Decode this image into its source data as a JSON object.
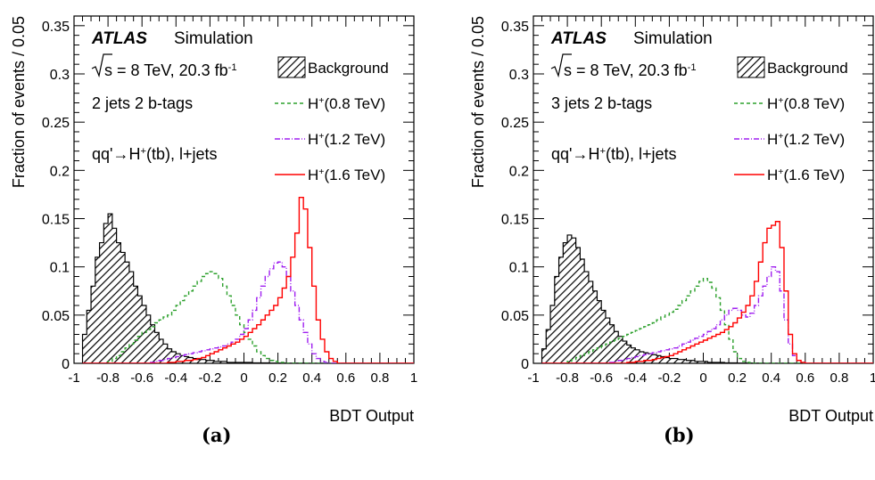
{
  "chart_data": [
    {
      "type": "line",
      "panel_label": "(a)",
      "xlabel": "BDT Output",
      "ylabel": "Fraction of events / 0.05",
      "xlim": [
        -1,
        1
      ],
      "ylim": [
        0,
        0.36
      ],
      "x_ticks": [
        "-1",
        "-0.8",
        "-0.6",
        "-0.4",
        "-0.2",
        "0",
        "0.2",
        "0.4",
        "0.6",
        "0.8",
        "1"
      ],
      "y_ticks": [
        "0",
        "0.05",
        "0.1",
        "0.15",
        "0.2",
        "0.25",
        "0.3",
        "0.35"
      ],
      "annotations": {
        "experiment": "ATLAS",
        "label": "Simulation",
        "energy_prefix": "s = 8 TeV, 20.3 fb",
        "energy_sup": "-1",
        "category": "2 jets 2 b-tags",
        "process_pre": "qq'",
        "process_post": "H",
        "process_sup": "+",
        "process_tail": "(tb), l+jets"
      },
      "legend": [
        "Background",
        "H+(0.8 TeV)",
        "H+(1.2 TeV)",
        "H+(1.6 TeV)"
      ],
      "legend_display": [
        {
          "pre": "",
          "sup": "",
          "post": "Background"
        },
        {
          "pre": "H",
          "sup": "+",
          "post": "(0.8 TeV)"
        },
        {
          "pre": "H",
          "sup": "+",
          "post": "(1.2 TeV)"
        },
        {
          "pre": "H",
          "sup": "+",
          "post": "(1.6 TeV)"
        }
      ],
      "bin_edges_start": -0.95,
      "bin_width": 0.025,
      "series": [
        {
          "name": "Background",
          "style": "hatched",
          "color": "#000000",
          "values": [
            0.03,
            0.055,
            0.08,
            0.11,
            0.125,
            0.145,
            0.155,
            0.14,
            0.125,
            0.115,
            0.105,
            0.095,
            0.08,
            0.07,
            0.06,
            0.05,
            0.04,
            0.032,
            0.025,
            0.02,
            0.015,
            0.012,
            0.01,
            0.008,
            0.007,
            0.006,
            0.005,
            0.004,
            0.004,
            0.003,
            0.003,
            0.002,
            0.002,
            0.002,
            0.001,
            0.001,
            0.001,
            0.001,
            0.001,
            0.001,
            0.0005,
            0.0005,
            0.0005,
            0.0005,
            0.0003,
            0.0003,
            0.0002,
            0.0002,
            0.0001,
            0.0001,
            0.0001,
            0.0001,
            0.0001,
            0,
            0,
            0,
            0,
            0,
            0,
            0,
            0,
            0,
            0,
            0,
            0,
            0,
            0,
            0,
            0,
            0,
            0,
            0,
            0,
            0,
            0,
            0,
            0,
            0
          ]
        },
        {
          "name": "H+(0.8 TeV)",
          "style": "dashed",
          "color": "#2ca02c",
          "values": [
            0,
            0,
            0,
            0,
            0,
            0,
            0.002,
            0.005,
            0.008,
            0.012,
            0.016,
            0.02,
            0.024,
            0.028,
            0.032,
            0.035,
            0.038,
            0.042,
            0.045,
            0.048,
            0.05,
            0.055,
            0.06,
            0.065,
            0.07,
            0.075,
            0.08,
            0.085,
            0.09,
            0.093,
            0.095,
            0.093,
            0.088,
            0.08,
            0.07,
            0.06,
            0.05,
            0.04,
            0.032,
            0.025,
            0.018,
            0.012,
            0.008,
            0.005,
            0.003,
            0.002,
            0.001,
            0.001,
            0,
            0,
            0,
            0,
            0,
            0,
            0,
            0,
            0,
            0,
            0,
            0,
            0,
            0,
            0,
            0,
            0,
            0,
            0,
            0,
            0,
            0,
            0,
            0,
            0,
            0,
            0,
            0,
            0,
            0
          ]
        },
        {
          "name": "H+(1.2 TeV)",
          "style": "dashdot",
          "color": "#a020f0",
          "values": [
            0,
            0,
            0,
            0,
            0,
            0,
            0,
            0,
            0,
            0,
            0,
            0,
            0,
            0,
            0,
            0,
            0.001,
            0.002,
            0.003,
            0.004,
            0.005,
            0.006,
            0.007,
            0.008,
            0.009,
            0.01,
            0.011,
            0.012,
            0.013,
            0.014,
            0.015,
            0.016,
            0.017,
            0.018,
            0.02,
            0.022,
            0.025,
            0.03,
            0.036,
            0.045,
            0.055,
            0.068,
            0.08,
            0.09,
            0.098,
            0.104,
            0.105,
            0.1,
            0.09,
            0.075,
            0.06,
            0.045,
            0.032,
            0.02,
            0.01,
            0.005,
            0.002,
            0.001,
            0,
            0,
            0,
            0,
            0,
            0,
            0,
            0,
            0,
            0,
            0,
            0,
            0,
            0,
            0,
            0,
            0,
            0,
            0,
            0
          ]
        },
        {
          "name": "H+(1.6 TeV)",
          "style": "solid",
          "color": "#ff0000",
          "values": [
            0,
            0,
            0,
            0,
            0,
            0,
            0,
            0,
            0,
            0,
            0,
            0,
            0,
            0,
            0,
            0,
            0,
            0,
            0,
            0,
            0.001,
            0.001,
            0.002,
            0.002,
            0.003,
            0.003,
            0.004,
            0.005,
            0.006,
            0.008,
            0.01,
            0.012,
            0.014,
            0.016,
            0.018,
            0.02,
            0.022,
            0.025,
            0.028,
            0.032,
            0.036,
            0.04,
            0.045,
            0.05,
            0.055,
            0.06,
            0.068,
            0.078,
            0.09,
            0.11,
            0.135,
            0.172,
            0.16,
            0.12,
            0.08,
            0.045,
            0.025,
            0.012,
            0.005,
            0.002,
            0,
            0,
            0,
            0,
            0,
            0,
            0,
            0,
            0,
            0,
            0,
            0,
            0,
            0,
            0,
            0,
            0,
            0
          ]
        }
      ]
    },
    {
      "type": "line",
      "panel_label": "(b)",
      "xlabel": "BDT Output",
      "ylabel": "Fraction of events / 0.05",
      "xlim": [
        -1,
        1
      ],
      "ylim": [
        0,
        0.36
      ],
      "x_ticks": [
        "-1",
        "-0.8",
        "-0.6",
        "-0.4",
        "-0.2",
        "0",
        "0.2",
        "0.4",
        "0.6",
        "0.8",
        "1"
      ],
      "y_ticks": [
        "0",
        "0.05",
        "0.1",
        "0.15",
        "0.2",
        "0.25",
        "0.3",
        "0.35"
      ],
      "annotations": {
        "experiment": "ATLAS",
        "label": "Simulation",
        "energy_prefix": "s = 8 TeV, 20.3 fb",
        "energy_sup": "-1",
        "category": "3 jets 2 b-tags",
        "process_pre": "qq'",
        "process_post": "H",
        "process_sup": "+",
        "process_tail": "(tb), l+jets"
      },
      "legend": [
        "Background",
        "H+(0.8 TeV)",
        "H+(1.2 TeV)",
        "H+(1.6 TeV)"
      ],
      "legend_display": [
        {
          "pre": "",
          "sup": "",
          "post": "Background"
        },
        {
          "pre": "H",
          "sup": "+",
          "post": "(0.8 TeV)"
        },
        {
          "pre": "H",
          "sup": "+",
          "post": "(1.2 TeV)"
        },
        {
          "pre": "H",
          "sup": "+",
          "post": "(1.6 TeV)"
        }
      ],
      "bin_edges_start": -0.95,
      "bin_width": 0.025,
      "series": [
        {
          "name": "Background",
          "style": "hatched",
          "color": "#000000",
          "values": [
            0.015,
            0.035,
            0.06,
            0.09,
            0.11,
            0.125,
            0.133,
            0.13,
            0.12,
            0.108,
            0.095,
            0.085,
            0.075,
            0.065,
            0.055,
            0.047,
            0.04,
            0.033,
            0.028,
            0.023,
            0.019,
            0.016,
            0.014,
            0.012,
            0.011,
            0.01,
            0.009,
            0.008,
            0.007,
            0.006,
            0.005,
            0.005,
            0.004,
            0.004,
            0.003,
            0.003,
            0.002,
            0.002,
            0.002,
            0.001,
            0.001,
            0.001,
            0.001,
            0.0005,
            0.0005,
            0.0005,
            0.0003,
            0.0003,
            0.0002,
            0.0002,
            0.0001,
            0.0001,
            0,
            0,
            0,
            0,
            0,
            0,
            0,
            0,
            0,
            0,
            0,
            0,
            0,
            0,
            0,
            0,
            0,
            0,
            0,
            0,
            0,
            0,
            0,
            0,
            0,
            0
          ]
        },
        {
          "name": "H+(0.8 TeV)",
          "style": "dashed",
          "color": "#2ca02c",
          "values": [
            0,
            0,
            0,
            0,
            0,
            0,
            0.002,
            0.004,
            0.006,
            0.008,
            0.01,
            0.012,
            0.014,
            0.016,
            0.018,
            0.02,
            0.022,
            0.024,
            0.026,
            0.028,
            0.03,
            0.032,
            0.034,
            0.036,
            0.038,
            0.04,
            0.042,
            0.045,
            0.048,
            0.05,
            0.053,
            0.056,
            0.06,
            0.065,
            0.07,
            0.075,
            0.08,
            0.085,
            0.088,
            0.084,
            0.078,
            0.068,
            0.055,
            0.04,
            0.025,
            0.012,
            0.005,
            0.002,
            0.001,
            0,
            0,
            0,
            0,
            0,
            0,
            0,
            0,
            0,
            0,
            0,
            0,
            0,
            0,
            0,
            0,
            0,
            0,
            0,
            0,
            0,
            0,
            0,
            0,
            0,
            0,
            0,
            0,
            0
          ]
        },
        {
          "name": "H+(1.2 TeV)",
          "style": "dashdot",
          "color": "#a020f0",
          "values": [
            0,
            0,
            0,
            0,
            0,
            0,
            0,
            0,
            0,
            0,
            0,
            0,
            0,
            0,
            0,
            0,
            0.001,
            0.002,
            0.003,
            0.004,
            0.005,
            0.006,
            0.007,
            0.008,
            0.009,
            0.01,
            0.011,
            0.012,
            0.013,
            0.014,
            0.015,
            0.016,
            0.018,
            0.02,
            0.022,
            0.024,
            0.026,
            0.028,
            0.03,
            0.033,
            0.036,
            0.04,
            0.045,
            0.05,
            0.055,
            0.057,
            0.055,
            0.05,
            0.048,
            0.052,
            0.06,
            0.07,
            0.08,
            0.09,
            0.1,
            0.095,
            0.075,
            0.045,
            0.02,
            0.008,
            0.003,
            0.001,
            0,
            0,
            0,
            0,
            0,
            0,
            0,
            0,
            0,
            0,
            0,
            0,
            0,
            0,
            0,
            0
          ]
        },
        {
          "name": "H+(1.6 TeV)",
          "style": "solid",
          "color": "#ff0000",
          "values": [
            0,
            0,
            0,
            0,
            0,
            0,
            0,
            0,
            0,
            0,
            0,
            0,
            0,
            0,
            0,
            0,
            0,
            0,
            0,
            0,
            0.001,
            0.001,
            0.002,
            0.002,
            0.003,
            0.003,
            0.004,
            0.005,
            0.006,
            0.007,
            0.008,
            0.01,
            0.012,
            0.014,
            0.016,
            0.018,
            0.02,
            0.022,
            0.024,
            0.026,
            0.028,
            0.03,
            0.032,
            0.035,
            0.038,
            0.042,
            0.047,
            0.053,
            0.06,
            0.07,
            0.085,
            0.105,
            0.125,
            0.14,
            0.143,
            0.147,
            0.12,
            0.075,
            0.03,
            0.01,
            0.003,
            0.001,
            0,
            0,
            0,
            0,
            0,
            0,
            0,
            0,
            0,
            0,
            0,
            0,
            0,
            0,
            0,
            0
          ]
        }
      ]
    }
  ]
}
